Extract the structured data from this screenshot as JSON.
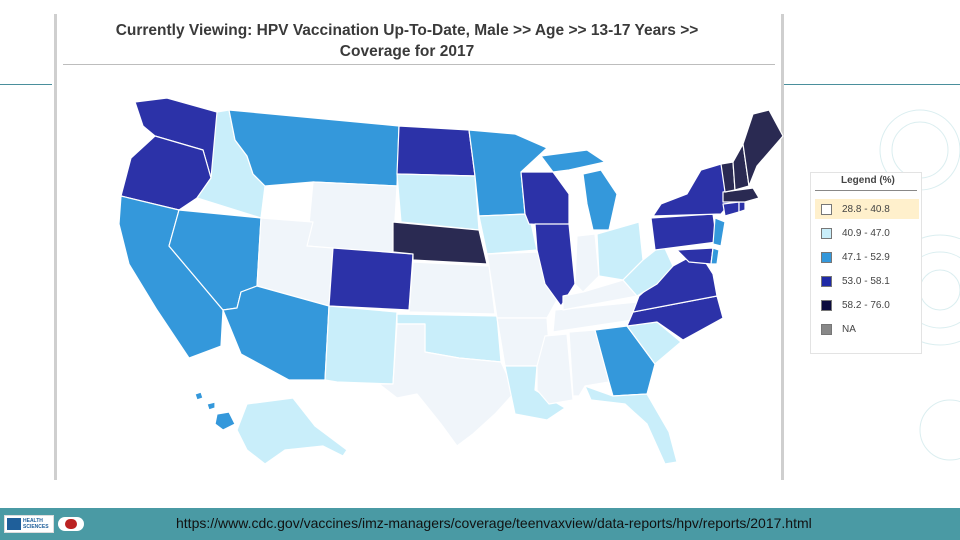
{
  "title": {
    "line1": "Currently Viewing:  HPV Vaccination Up-To-Date, Male  >>  Age  >>  13-17 Years  >>",
    "line2": "Coverage for 2017"
  },
  "legend": {
    "title": "Legend (%)",
    "items": [
      {
        "label": "28.8 - 40.8",
        "color": "#ffffff"
      },
      {
        "label": "40.9 - 47.0",
        "color": "#c9eefa"
      },
      {
        "label": "47.1 - 52.9",
        "color": "#3498db"
      },
      {
        "label": "53.0 - 58.1",
        "color": "#1f2aa6"
      },
      {
        "label": "58.2 - 76.0",
        "color": "#0b0b3d"
      },
      {
        "label": "NA",
        "color": "#888888"
      }
    ]
  },
  "map_classes": {
    "c1": "#f0f5fa",
    "c2": "#c9eefa",
    "c3": "#3498db",
    "c4": "#2c32a8",
    "c5": "#2a2a52"
  },
  "footer": {
    "logo_text": "HEALTH SCIENCES",
    "url": "https://www.cdc.gov/vaccines/imz-managers/coverage/teenvaxview/data-reports/hpv/reports/2017.html"
  }
}
